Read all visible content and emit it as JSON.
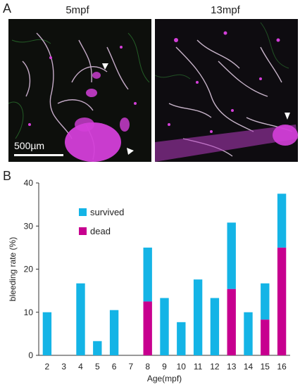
{
  "panel_a": {
    "label": "A",
    "images": [
      {
        "title": "5mpf"
      },
      {
        "title": "13mpf"
      }
    ],
    "scale_bar_label": "500µm"
  },
  "panel_b": {
    "label": "B"
  },
  "chart_data": {
    "type": "bar",
    "stacked": true,
    "categories": [
      "2",
      "3",
      "4",
      "5",
      "6",
      "7",
      "8",
      "9",
      "10",
      "11",
      "12",
      "13",
      "14",
      "15",
      "16"
    ],
    "series": [
      {
        "name": "dead",
        "color": "#c7008f",
        "values": [
          0,
          0,
          0,
          0,
          0,
          0,
          12.5,
          0,
          0,
          0,
          0,
          15.4,
          0,
          8.3,
          25
        ]
      },
      {
        "name": "survived",
        "color": "#14b4e6",
        "values": [
          10,
          0,
          16.7,
          3.3,
          10.5,
          0,
          12.5,
          13.3,
          7.7,
          17.6,
          13.3,
          15.4,
          10,
          8.4,
          12.5
        ]
      }
    ],
    "legend": [
      {
        "name": "survived",
        "color": "#14b4e6"
      },
      {
        "name": "dead",
        "color": "#c7008f"
      }
    ],
    "legend_position": "top-left",
    "xlabel": "Age(mpf)",
    "ylabel": "bleeding rate (%)",
    "ylim": [
      0,
      40
    ],
    "yticks": [
      0,
      10,
      20,
      30,
      40
    ],
    "grid": false
  }
}
